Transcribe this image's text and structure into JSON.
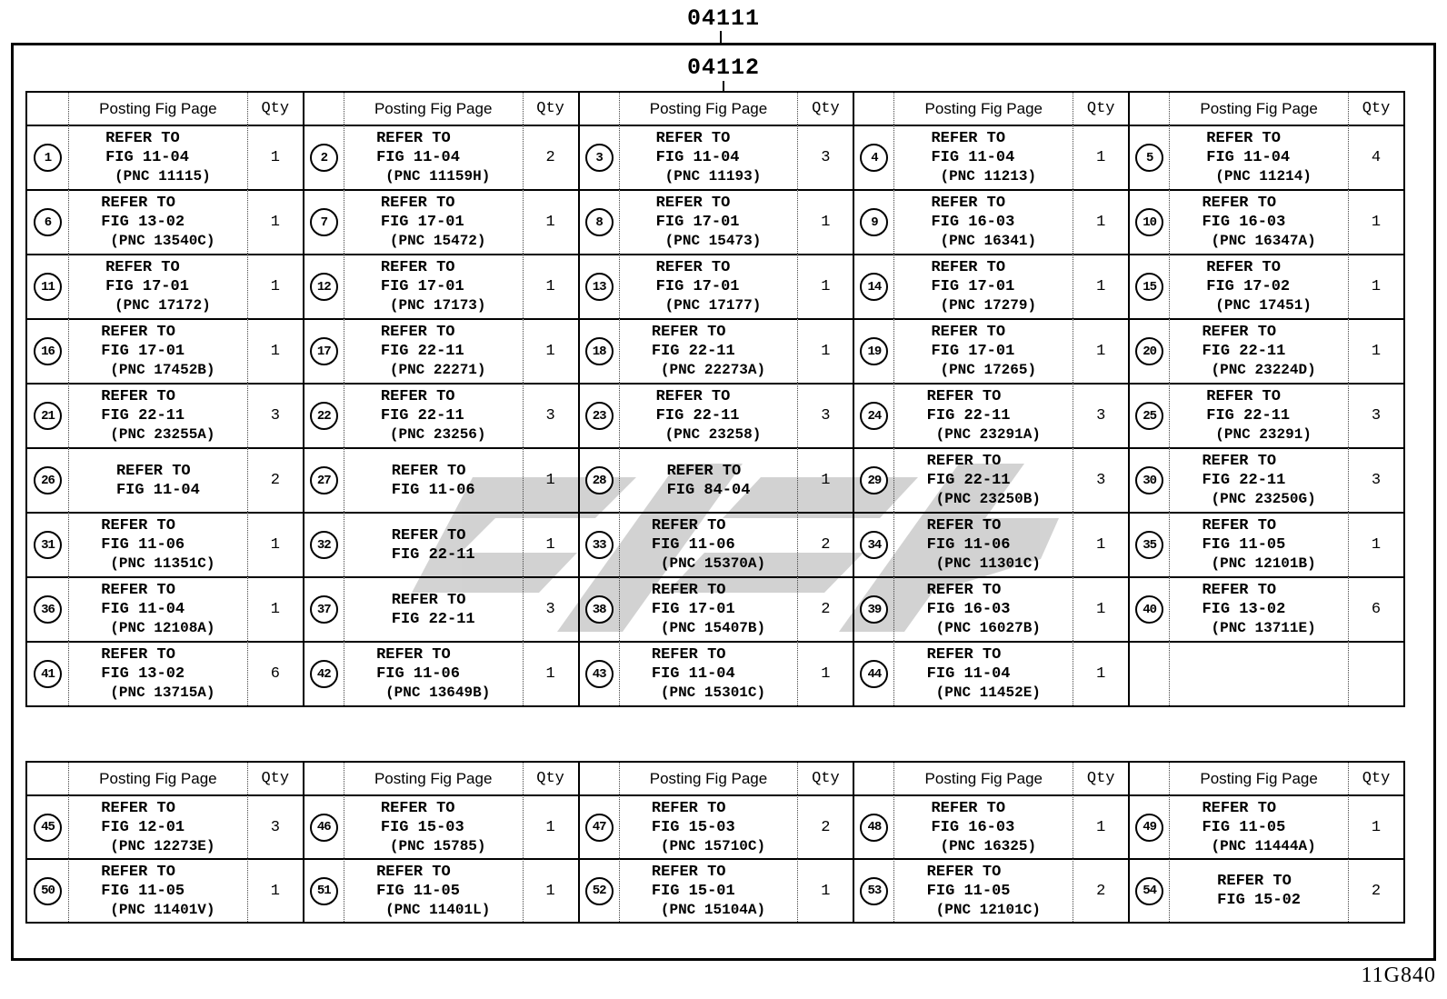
{
  "page": {
    "title_outer": "04111",
    "title_inner": "04112",
    "footer_code": "11G840"
  },
  "header_labels": {
    "posting": "Posting Fig Page",
    "qty": "Qty"
  },
  "refer_to": "REFER TO",
  "tables": [
    {
      "name": "upper",
      "rows": [
        [
          {
            "n": "1",
            "fig": "FIG 11-04",
            "pnc": "(PNC 11115)",
            "qty": "1"
          },
          {
            "n": "2",
            "fig": "FIG 11-04",
            "pnc": "(PNC 11159H)",
            "qty": "2"
          },
          {
            "n": "3",
            "fig": "FIG 11-04",
            "pnc": "(PNC 11193)",
            "qty": "3"
          },
          {
            "n": "4",
            "fig": "FIG 11-04",
            "pnc": "(PNC 11213)",
            "qty": "1"
          },
          {
            "n": "5",
            "fig": "FIG 11-04",
            "pnc": "(PNC 11214)",
            "qty": "4"
          }
        ],
        [
          {
            "n": "6",
            "fig": "FIG 13-02",
            "pnc": "(PNC 13540C)",
            "qty": "1"
          },
          {
            "n": "7",
            "fig": "FIG 17-01",
            "pnc": "(PNC 15472)",
            "qty": "1"
          },
          {
            "n": "8",
            "fig": "FIG 17-01",
            "pnc": "(PNC 15473)",
            "qty": "1"
          },
          {
            "n": "9",
            "fig": "FIG 16-03",
            "pnc": "(PNC 16341)",
            "qty": "1"
          },
          {
            "n": "10",
            "fig": "FIG 16-03",
            "pnc": "(PNC 16347A)",
            "qty": "1"
          }
        ],
        [
          {
            "n": "11",
            "fig": "FIG 17-01",
            "pnc": "(PNC 17172)",
            "qty": "1"
          },
          {
            "n": "12",
            "fig": "FIG 17-01",
            "pnc": "(PNC 17173)",
            "qty": "1"
          },
          {
            "n": "13",
            "fig": "FIG 17-01",
            "pnc": "(PNC 17177)",
            "qty": "1"
          },
          {
            "n": "14",
            "fig": "FIG 17-01",
            "pnc": "(PNC 17279)",
            "qty": "1"
          },
          {
            "n": "15",
            "fig": "FIG 17-02",
            "pnc": "(PNC 17451)",
            "qty": "1"
          }
        ],
        [
          {
            "n": "16",
            "fig": "FIG 17-01",
            "pnc": "(PNC 17452B)",
            "qty": "1"
          },
          {
            "n": "17",
            "fig": "FIG 22-11",
            "pnc": "(PNC 22271)",
            "qty": "1"
          },
          {
            "n": "18",
            "fig": "FIG 22-11",
            "pnc": "(PNC 22273A)",
            "qty": "1"
          },
          {
            "n": "19",
            "fig": "FIG 17-01",
            "pnc": "(PNC 17265)",
            "qty": "1"
          },
          {
            "n": "20",
            "fig": "FIG 22-11",
            "pnc": "(PNC 23224D)",
            "qty": "1"
          }
        ],
        [
          {
            "n": "21",
            "fig": "FIG 22-11",
            "pnc": "(PNC 23255A)",
            "qty": "3"
          },
          {
            "n": "22",
            "fig": "FIG 22-11",
            "pnc": "(PNC 23256)",
            "qty": "3"
          },
          {
            "n": "23",
            "fig": "FIG 22-11",
            "pnc": "(PNC 23258)",
            "qty": "3"
          },
          {
            "n": "24",
            "fig": "FIG 22-11",
            "pnc": "(PNC 23291A)",
            "qty": "3"
          },
          {
            "n": "25",
            "fig": "FIG 22-11",
            "pnc": "(PNC 23291)",
            "qty": "3"
          }
        ],
        [
          {
            "n": "26",
            "fig": "FIG 11-04",
            "pnc": null,
            "qty": "2"
          },
          {
            "n": "27",
            "fig": "FIG 11-06",
            "pnc": null,
            "qty": "1"
          },
          {
            "n": "28",
            "fig": "FIG 84-04",
            "pnc": null,
            "qty": "1"
          },
          {
            "n": "29",
            "fig": "FIG 22-11",
            "pnc": "(PNC 23250B)",
            "qty": "3"
          },
          {
            "n": "30",
            "fig": "FIG 22-11",
            "pnc": "(PNC 23250G)",
            "qty": "3"
          }
        ],
        [
          {
            "n": "31",
            "fig": "FIG 11-06",
            "pnc": "(PNC 11351C)",
            "qty": "1"
          },
          {
            "n": "32",
            "fig": "FIG 22-11",
            "pnc": null,
            "qty": "1"
          },
          {
            "n": "33",
            "fig": "FIG 11-06",
            "pnc": "(PNC 15370A)",
            "qty": "2"
          },
          {
            "n": "34",
            "fig": "FIG 11-06",
            "pnc": "(PNC 11301C)",
            "qty": "1"
          },
          {
            "n": "35",
            "fig": "FIG 11-05",
            "pnc": "(PNC 12101B)",
            "qty": "1"
          }
        ],
        [
          {
            "n": "36",
            "fig": "FIG 11-04",
            "pnc": "(PNC 12108A)",
            "qty": "1"
          },
          {
            "n": "37",
            "fig": "FIG 22-11",
            "pnc": null,
            "qty": "3"
          },
          {
            "n": "38",
            "fig": "FIG 17-01",
            "pnc": "(PNC 15407B)",
            "qty": "2"
          },
          {
            "n": "39",
            "fig": "FIG 16-03",
            "pnc": "(PNC 16027B)",
            "qty": "1"
          },
          {
            "n": "40",
            "fig": "FIG 13-02",
            "pnc": "(PNC 13711E)",
            "qty": "6"
          }
        ],
        [
          {
            "n": "41",
            "fig": "FIG 13-02",
            "pnc": "(PNC 13715A)",
            "qty": "6"
          },
          {
            "n": "42",
            "fig": "FIG 11-06",
            "pnc": "(PNC 13649B)",
            "qty": "1"
          },
          {
            "n": "43",
            "fig": "FIG 11-04",
            "pnc": "(PNC 15301C)",
            "qty": "1"
          },
          {
            "n": "44",
            "fig": "FIG 11-04",
            "pnc": "(PNC 11452E)",
            "qty": "1"
          },
          null
        ]
      ]
    },
    {
      "name": "lower",
      "rows": [
        [
          {
            "n": "45",
            "fig": "FIG 12-01",
            "pnc": "(PNC 12273E)",
            "qty": "3"
          },
          {
            "n": "46",
            "fig": "FIG 15-03",
            "pnc": "(PNC 15785)",
            "qty": "1"
          },
          {
            "n": "47",
            "fig": "FIG 15-03",
            "pnc": "(PNC 15710C)",
            "qty": "2"
          },
          {
            "n": "48",
            "fig": "FIG 16-03",
            "pnc": "(PNC 16325)",
            "qty": "1"
          },
          {
            "n": "49",
            "fig": "FIG 11-05",
            "pnc": "(PNC 11444A)",
            "qty": "1"
          }
        ],
        [
          {
            "n": "50",
            "fig": "FIG 11-05",
            "pnc": "(PNC 11401V)",
            "qty": "1"
          },
          {
            "n": "51",
            "fig": "FIG 11-05",
            "pnc": "(PNC 11401L)",
            "qty": "1"
          },
          {
            "n": "52",
            "fig": "FIG 15-01",
            "pnc": "(PNC 15104A)",
            "qty": "1"
          },
          {
            "n": "53",
            "fig": "FIG 11-05",
            "pnc": "(PNC 12101C)",
            "qty": "2"
          },
          {
            "n": "54",
            "fig": "FIG 15-02",
            "pnc": null,
            "qty": "2"
          }
        ]
      ]
    }
  ],
  "watermark_color": "#c8c8c8"
}
